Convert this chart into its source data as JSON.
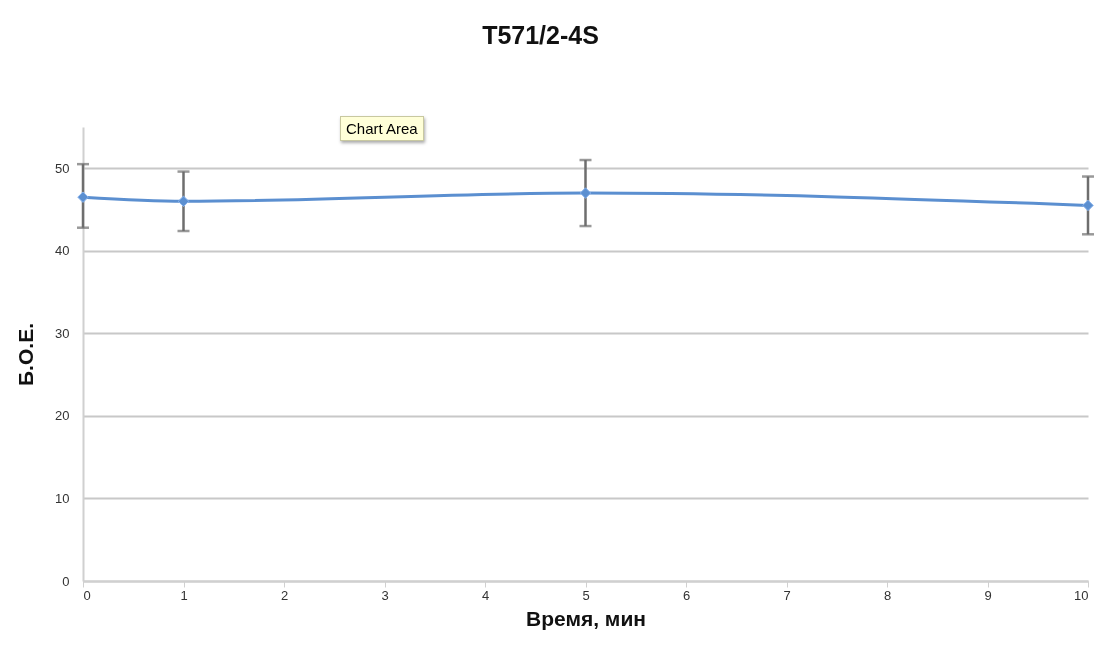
{
  "chart_data": {
    "type": "line",
    "title": "T571/2-4S",
    "xlabel": "Время, мин",
    "ylabel": "Б.О.Е.",
    "x": [
      0,
      1,
      5,
      10
    ],
    "series": [
      {
        "color": "#5b8fd0",
        "values": [
          46.5,
          46.0,
          47.0,
          45.5
        ],
        "errors": [
          [
            42.8,
            50.5
          ],
          [
            42.4,
            49.6
          ],
          [
            43.0,
            51.0
          ],
          [
            42.0,
            49.0
          ]
        ]
      }
    ],
    "xlim": [
      0,
      10
    ],
    "xticks": [
      0,
      1,
      2,
      3,
      4,
      5,
      6,
      7,
      8,
      9,
      10
    ],
    "ylim": [
      0,
      55
    ],
    "yticks": [
      0,
      10,
      20,
      30,
      40,
      50
    ],
    "grid": "y",
    "marker": "diamond",
    "line_style": "solid",
    "annotations": [
      "Chart Area"
    ]
  }
}
